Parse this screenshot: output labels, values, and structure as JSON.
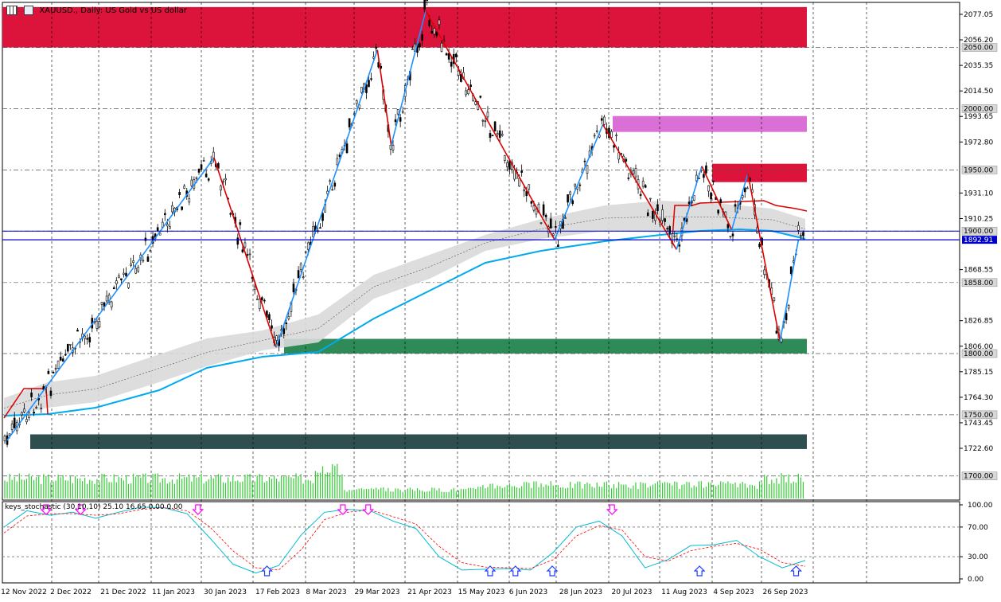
{
  "window": {
    "title": "XAUUSD., Daily:  US Gold vs US dollar",
    "menu_icon": "menu-grid-icon",
    "chart_icon": "chart-window-icon"
  },
  "indicator": {
    "label": "keys_stochastic (30,10,10) 25.10 16.65 0.00 0.00"
  },
  "colors": {
    "supply_zone": "#dc143c",
    "supply_zone_small": "#dc143c",
    "magenta_zone": "#da70d6",
    "demand_zone": "#2e8b57",
    "dark_zone": "#2f4f4f",
    "zigzag_up": "#1e90ff",
    "zigzag_down": "#dd0000",
    "ma_blue": "#00aaee",
    "price_line": "#0000cc",
    "volume": "#32cd32",
    "stoch_main": "#00bcd4",
    "stoch_signal": "#ff0000",
    "arrow_down": "#ff00ff",
    "arrow_up": "#1e3cff"
  },
  "chart_data": {
    "type": "candlestick",
    "symbol": "XAUUSD.",
    "timeframe": "Daily",
    "ylim": [
      1700,
      2083
    ],
    "y_ticks": [
      2077.05,
      2056.2,
      2035.35,
      2014.5,
      1993.65,
      1972.8,
      1931.1,
      1910.25,
      1868.55,
      1826.85,
      1806.0,
      1785.15,
      1764.3,
      1743.45,
      1722.6
    ],
    "level_labels": [
      2050.0,
      2000.0,
      1950.0,
      1900.0,
      1858.0,
      1800.0,
      1750.0,
      1700.0
    ],
    "current_price": 1892.91,
    "x_labels": [
      "12 Nov 2022",
      "2 Dec 2022",
      "21 Dec 2022",
      "11 Jan 2023",
      "30 Jan 2023",
      "17 Feb 2023",
      "8 Mar 2023",
      "29 Mar 2023",
      "21 Apr 2023",
      "15 May 2023",
      "6 Jun 2023",
      "28 Jun 2023",
      "20 Jul 2023",
      "11 Aug 2023",
      "4 Sep 2023",
      "26 Sep 2023"
    ],
    "zigzag": [
      {
        "date": "2022-11-03",
        "price": 1729
      },
      {
        "date": "2023-02-01",
        "price": 1960
      },
      {
        "date": "2023-02-28",
        "price": 1805
      },
      {
        "date": "2023-04-13",
        "price": 2048
      },
      {
        "date": "2023-04-19",
        "price": 1970
      },
      {
        "date": "2023-05-04",
        "price": 2080
      },
      {
        "date": "2023-06-29",
        "price": 1893
      },
      {
        "date": "2023-07-20",
        "price": 1987
      },
      {
        "date": "2023-08-21",
        "price": 1885
      },
      {
        "date": "2023-09-01",
        "price": 1953
      },
      {
        "date": "2023-09-14",
        "price": 1901
      },
      {
        "date": "2023-09-21",
        "price": 1947
      },
      {
        "date": "2023-10-05",
        "price": 1810
      },
      {
        "date": "2023-10-13",
        "price": 1892.91
      }
    ],
    "zones": [
      {
        "name": "supply-main",
        "from": 2050,
        "to": 2083
      },
      {
        "name": "supply-mid",
        "from": 1981,
        "to": 1994
      },
      {
        "name": "supply-small",
        "from": 1940,
        "to": 1955
      },
      {
        "name": "demand-main",
        "from": 1800,
        "to": 1812
      },
      {
        "name": "demand-low",
        "from": 1722,
        "to": 1734
      }
    ],
    "stochastic": {
      "name": "keys_stochastic (30,10,10)",
      "k": 25.1,
      "d": 16.65,
      "ylim": [
        0,
        100
      ],
      "y_ticks": [
        100.0,
        70.0,
        30.0,
        0.0
      ],
      "k_series": [
        70,
        92,
        86,
        90,
        82,
        90,
        97,
        96,
        88,
        55,
        20,
        8,
        18,
        60,
        90,
        94,
        92,
        78,
        68,
        30,
        12,
        13,
        14,
        12,
        36,
        70,
        78,
        58,
        15,
        26,
        45,
        46,
        52,
        30,
        15,
        25
      ],
      "d_series": [
        62,
        85,
        88,
        88,
        86,
        88,
        94,
        96,
        92,
        70,
        38,
        15,
        12,
        40,
        80,
        90,
        93,
        84,
        74,
        44,
        22,
        16,
        15,
        14,
        26,
        58,
        72,
        66,
        30,
        24,
        38,
        44,
        48,
        40,
        22,
        17
      ],
      "arrows_down": [
        "2022-11-20",
        "2022-12-05",
        "2023-01-25",
        "2023-03-29",
        "2023-04-09",
        "2023-07-24"
      ],
      "arrows_up": [
        "2023-02-24",
        "2023-06-01",
        "2023-06-12",
        "2023-06-28",
        "2023-08-31",
        "2023-10-12"
      ]
    }
  }
}
